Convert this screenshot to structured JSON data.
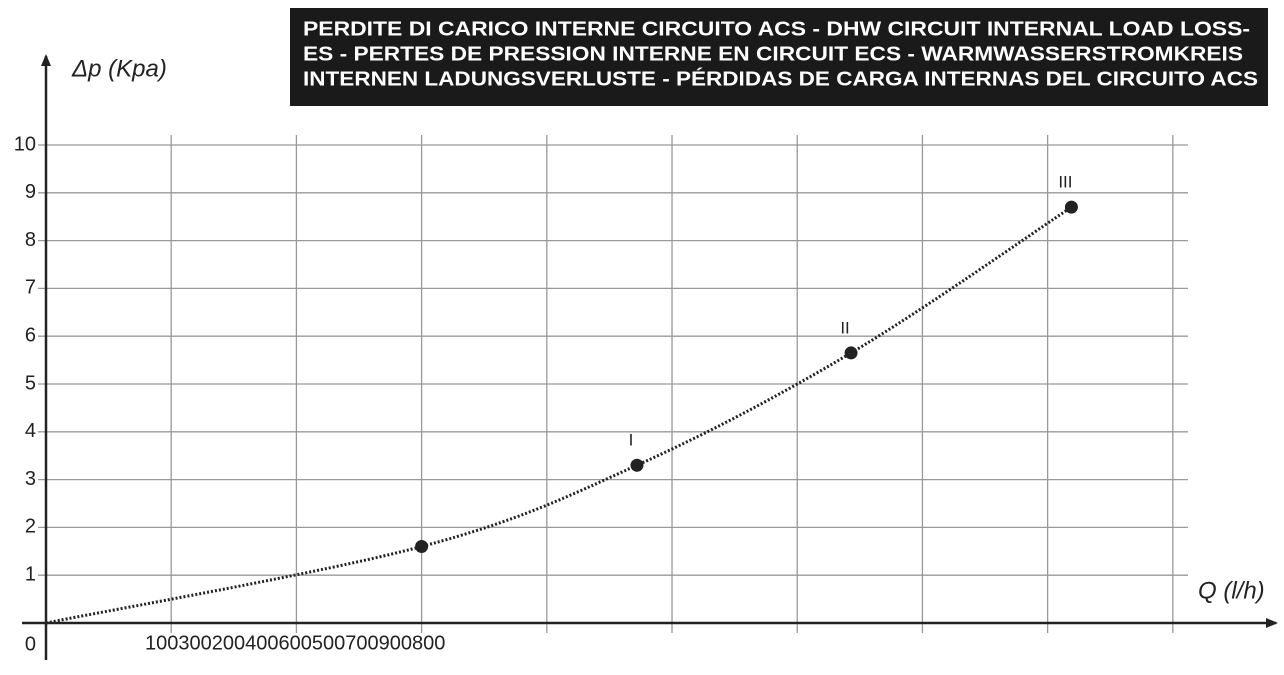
{
  "chart_data": {
    "type": "line",
    "title": [
      "PERDITE DI CARICO INTERNE CIRCUITO ACS - DHW CIRCUIT INTERNAL LOAD LOSS-",
      "ES - PERTES DE PRESSION INTERNE EN CIRCUIT ECS - WARMWASSERSTROMKREIS",
      "INTERNEN LADUNGSVERLUSTE - PÉRDIDAS DE CARGA INTERNAS DEL CIRCUITO ACS"
    ],
    "y_label": "Δp (Kpa)",
    "x_label": "Q (l/h)",
    "x_tick_text": "100300200400600500700900800",
    "x": [
      0,
      300,
      472,
      643,
      819
    ],
    "values": [
      0,
      1.6,
      3.3,
      5.65,
      8.7
    ],
    "point_labels": [
      null,
      null,
      "I",
      "II",
      "III"
    ],
    "color": "#222222",
    "xlim": [
      0,
      980
    ],
    "xticks": [
      100,
      200,
      300,
      400,
      500,
      600,
      700,
      800,
      900
    ],
    "ylim": [
      0,
      10
    ],
    "yticks": [
      0,
      1,
      2,
      3,
      4,
      5,
      6,
      7,
      8,
      9,
      10
    ],
    "grid": true
  }
}
